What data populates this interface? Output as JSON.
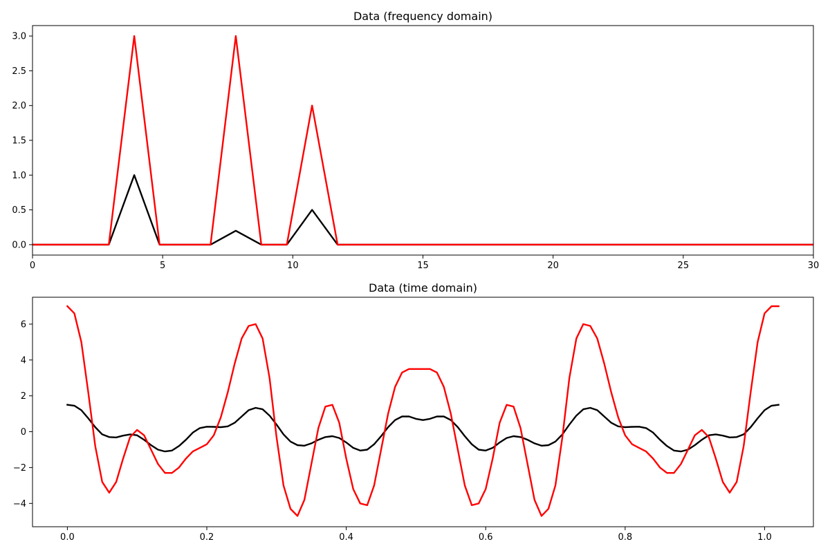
{
  "chart_data": [
    {
      "type": "line",
      "title": "Data (frequency domain)",
      "xlabel": "",
      "ylabel": "",
      "xlim": [
        0,
        30
      ],
      "ylim": [
        -0.15,
        3.15
      ],
      "xticks": [
        0,
        5,
        10,
        15,
        20,
        25,
        30
      ],
      "xtick_labels": [
        "0",
        "5",
        "10",
        "15",
        "20",
        "25",
        "30"
      ],
      "yticks": [
        0.0,
        0.5,
        1.0,
        1.5,
        2.0,
        2.5,
        3.0
      ],
      "ytick_labels": [
        "0.0",
        "0.5",
        "1.0",
        "1.5",
        "2.0",
        "2.5",
        "3.0"
      ],
      "grid": false,
      "series": [
        {
          "color": "#000000",
          "x": [
            0,
            0.98,
            1.95,
            2.93,
            3.91,
            4.88,
            5.86,
            6.84,
            7.81,
            8.79,
            9.77,
            10.74,
            11.72,
            12.7,
            13.67,
            14.65,
            15.63,
            16.6,
            17.58,
            18.55,
            19.53,
            20.51,
            21.48,
            22.46,
            23.44,
            24.41,
            25.39,
            26.37,
            27.34,
            28.32,
            29.3,
            30.27
          ],
          "values": [
            0,
            0,
            0,
            0,
            1.0,
            0,
            0,
            0,
            0.2,
            0,
            0,
            0.5,
            0,
            0,
            0,
            0,
            0,
            0,
            0,
            0,
            0,
            0,
            0,
            0,
            0,
            0,
            0,
            0,
            0,
            0,
            0,
            0
          ]
        },
        {
          "color": "#ff0000",
          "x": [
            0,
            0.98,
            1.95,
            2.93,
            3.91,
            4.88,
            5.86,
            6.84,
            7.81,
            8.79,
            9.77,
            10.74,
            11.72,
            12.7,
            13.67,
            14.65,
            15.63,
            16.6,
            17.58,
            18.55,
            19.53,
            20.51,
            21.48,
            22.46,
            23.44,
            24.41,
            25.39,
            26.37,
            27.34,
            28.32,
            29.3,
            30.27
          ],
          "values": [
            0,
            0,
            0,
            0,
            3.0,
            0,
            0,
            0,
            3.0,
            0,
            0,
            2.0,
            0,
            0,
            0,
            0,
            0,
            0,
            0,
            0,
            0,
            0,
            0,
            0,
            0,
            0,
            0,
            0,
            0,
            0,
            0,
            0
          ]
        }
      ]
    },
    {
      "type": "line",
      "title": "Data (time domain)",
      "xlabel": "",
      "ylabel": "",
      "xlim": [
        -0.05,
        1.07
      ],
      "ylim": [
        -5.3,
        7.5
      ],
      "xticks": [
        0.0,
        0.2,
        0.4,
        0.6,
        0.8,
        1.0
      ],
      "xtick_labels": [
        "0.0",
        "0.2",
        "0.4",
        "0.6",
        "0.8",
        "1.0"
      ],
      "yticks": [
        -4,
        -2,
        0,
        2,
        4,
        6
      ],
      "ytick_labels": [
        "−4",
        "−2",
        "0",
        "2",
        "4",
        "6"
      ],
      "grid": false,
      "series": [
        {
          "color": "#000000",
          "x": [
            0.0,
            0.01,
            0.02,
            0.03,
            0.04,
            0.05,
            0.06,
            0.07,
            0.08,
            0.09,
            0.1,
            0.11,
            0.12,
            0.13,
            0.14,
            0.15,
            0.16,
            0.17,
            0.18,
            0.19,
            0.2,
            0.21,
            0.22,
            0.23,
            0.24,
            0.25,
            0.26,
            0.27,
            0.28,
            0.29,
            0.3,
            0.31,
            0.32,
            0.33,
            0.34,
            0.35,
            0.36,
            0.37,
            0.38,
            0.39,
            0.4,
            0.41,
            0.42,
            0.43,
            0.44,
            0.45,
            0.46,
            0.47,
            0.48,
            0.49,
            0.5,
            0.51,
            0.52,
            0.53,
            0.54,
            0.55,
            0.56,
            0.57,
            0.58,
            0.59,
            0.6,
            0.61,
            0.62,
            0.63,
            0.64,
            0.65,
            0.66,
            0.67,
            0.68,
            0.69,
            0.7,
            0.71,
            0.72,
            0.73,
            0.74,
            0.75,
            0.76,
            0.77,
            0.78,
            0.79,
            0.8,
            0.81,
            0.82,
            0.83,
            0.84,
            0.85,
            0.86,
            0.87,
            0.88,
            0.89,
            0.9,
            0.91,
            0.92,
            0.93,
            0.94,
            0.95,
            0.96,
            0.97,
            0.98,
            0.99,
            1.0,
            1.01,
            1.02
          ],
          "values": [
            1.5,
            1.45,
            1.2,
            0.75,
            0.25,
            -0.15,
            -0.3,
            -0.32,
            -0.22,
            -0.15,
            -0.2,
            -0.45,
            -0.75,
            -1.0,
            -1.1,
            -1.05,
            -0.8,
            -0.45,
            -0.05,
            0.2,
            0.28,
            0.27,
            0.25,
            0.3,
            0.5,
            0.85,
            1.2,
            1.33,
            1.25,
            0.9,
            0.4,
            -0.15,
            -0.55,
            -0.75,
            -0.78,
            -0.65,
            -0.45,
            -0.3,
            -0.25,
            -0.35,
            -0.6,
            -0.9,
            -1.05,
            -1.0,
            -0.7,
            -0.25,
            0.25,
            0.65,
            0.85,
            0.85,
            0.72,
            0.65,
            0.72,
            0.85,
            0.85,
            0.65,
            0.25,
            -0.25,
            -0.7,
            -1.0,
            -1.05,
            -0.9,
            -0.6,
            -0.35,
            -0.25,
            -0.3,
            -0.45,
            -0.65,
            -0.78,
            -0.75,
            -0.55,
            -0.15,
            0.4,
            0.9,
            1.25,
            1.33,
            1.2,
            0.85,
            0.5,
            0.3,
            0.25,
            0.27,
            0.28,
            0.2,
            -0.05,
            -0.45,
            -0.8,
            -1.05,
            -1.1,
            -1.0,
            -0.75,
            -0.45,
            -0.2,
            -0.15,
            -0.22,
            -0.32,
            -0.3,
            -0.15,
            0.25,
            0.75,
            1.2,
            1.45,
            1.5
          ]
        },
        {
          "color": "#ff0000",
          "x": [
            0.0,
            0.01,
            0.02,
            0.03,
            0.04,
            0.05,
            0.06,
            0.07,
            0.08,
            0.09,
            0.1,
            0.11,
            0.12,
            0.13,
            0.14,
            0.15,
            0.16,
            0.17,
            0.18,
            0.19,
            0.2,
            0.21,
            0.22,
            0.23,
            0.24,
            0.25,
            0.26,
            0.27,
            0.28,
            0.29,
            0.3,
            0.31,
            0.32,
            0.33,
            0.34,
            0.35,
            0.36,
            0.37,
            0.38,
            0.39,
            0.4,
            0.41,
            0.42,
            0.43,
            0.44,
            0.45,
            0.46,
            0.47,
            0.48,
            0.49,
            0.5,
            0.51,
            0.52,
            0.53,
            0.54,
            0.55,
            0.56,
            0.57,
            0.58,
            0.59,
            0.6,
            0.61,
            0.62,
            0.63,
            0.64,
            0.65,
            0.66,
            0.67,
            0.68,
            0.69,
            0.7,
            0.71,
            0.72,
            0.73,
            0.74,
            0.75,
            0.76,
            0.77,
            0.78,
            0.79,
            0.8,
            0.81,
            0.82,
            0.83,
            0.84,
            0.85,
            0.86,
            0.87,
            0.88,
            0.89,
            0.9,
            0.91,
            0.92,
            0.93,
            0.94,
            0.95,
            0.96,
            0.97,
            0.98,
            0.99,
            1.0,
            1.01,
            1.02
          ],
          "values": [
            7.0,
            6.6,
            5.0,
            2.2,
            -0.8,
            -2.8,
            -3.4,
            -2.8,
            -1.5,
            -0.3,
            0.1,
            -0.2,
            -1.0,
            -1.8,
            -2.3,
            -2.3,
            -2.0,
            -1.5,
            -1.1,
            -0.9,
            -0.7,
            -0.2,
            0.8,
            2.2,
            3.8,
            5.2,
            5.9,
            6.0,
            5.2,
            3.0,
            -0.3,
            -3.0,
            -4.3,
            -4.7,
            -3.8,
            -1.8,
            0.2,
            1.4,
            1.5,
            0.5,
            -1.5,
            -3.2,
            -4.0,
            -4.1,
            -3.0,
            -1.0,
            1.0,
            2.5,
            3.3,
            3.5,
            3.5,
            3.5,
            3.5,
            3.3,
            2.5,
            1.0,
            -1.0,
            -3.0,
            -4.1,
            -4.0,
            -3.2,
            -1.5,
            0.5,
            1.5,
            1.4,
            0.2,
            -1.8,
            -3.8,
            -4.7,
            -4.3,
            -3.0,
            -0.3,
            3.0,
            5.2,
            6.0,
            5.9,
            5.2,
            3.8,
            2.2,
            0.8,
            -0.2,
            -0.7,
            -0.9,
            -1.1,
            -1.5,
            -2.0,
            -2.3,
            -2.3,
            -1.8,
            -1.0,
            -0.2,
            0.1,
            -0.3,
            -1.5,
            -2.8,
            -3.4,
            -2.8,
            -0.8,
            2.2,
            5.0,
            6.6,
            7.0,
            7.0
          ]
        }
      ]
    }
  ]
}
